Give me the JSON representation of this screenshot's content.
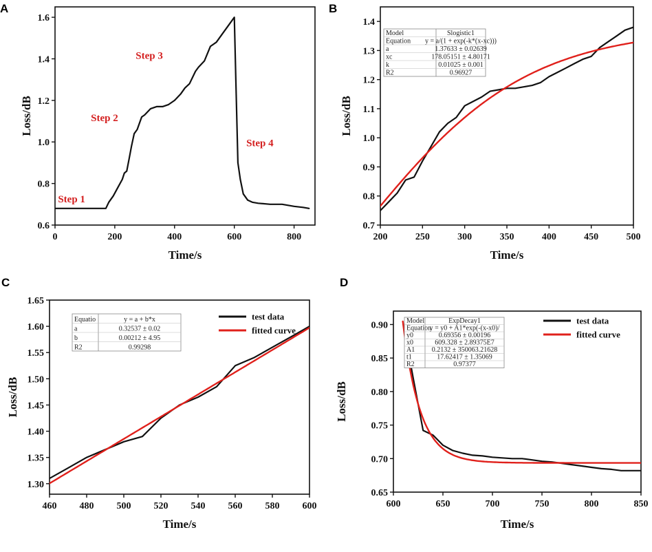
{
  "colors": {
    "data": "#111111",
    "fit": "#e0201b",
    "step_label": "#d42020",
    "axis": "#111111"
  },
  "chart_data": [
    {
      "id": "A",
      "type": "line",
      "panel_label": "A",
      "xlabel": "Time/s",
      "ylabel": "Loss/dB",
      "xlim": [
        0,
        870
      ],
      "ylim": [
        0.6,
        1.65
      ],
      "xticks": [
        0,
        200,
        400,
        600,
        800
      ],
      "yticks": [
        0.6,
        0.8,
        1.0,
        1.2,
        1.4,
        1.6
      ],
      "ytick_decimals": 1,
      "series": [
        {
          "name": "test data",
          "color": "#111111",
          "x": [
            0,
            170,
            180,
            195,
            210,
            225,
            232,
            240,
            248,
            256,
            265,
            275,
            290,
            300,
            320,
            340,
            360,
            380,
            400,
            420,
            435,
            450,
            470,
            480,
            500,
            520,
            540,
            560,
            580,
            600,
            605,
            612,
            620,
            630,
            645,
            660,
            680,
            720,
            760,
            800,
            830,
            850
          ],
          "y": [
            0.68,
            0.68,
            0.71,
            0.74,
            0.78,
            0.82,
            0.85,
            0.86,
            0.92,
            0.98,
            1.04,
            1.06,
            1.12,
            1.13,
            1.16,
            1.17,
            1.17,
            1.18,
            1.2,
            1.23,
            1.26,
            1.28,
            1.34,
            1.36,
            1.39,
            1.46,
            1.48,
            1.52,
            1.56,
            1.6,
            1.3,
            0.9,
            0.82,
            0.75,
            0.72,
            0.71,
            0.705,
            0.7,
            0.7,
            0.69,
            0.685,
            0.68
          ]
        }
      ],
      "annotations": [
        {
          "text": "Step 1",
          "x": 10,
          "y": 0.71
        },
        {
          "text": "Step 2",
          "x": 120,
          "y": 1.1
        },
        {
          "text": "Step 3",
          "x": 270,
          "y": 1.4
        },
        {
          "text": "Step 4",
          "x": 640,
          "y": 0.98
        }
      ]
    },
    {
      "id": "B",
      "type": "line",
      "panel_label": "B",
      "xlabel": "Time/s",
      "ylabel": "Loss/dB",
      "xlim": [
        200,
        500
      ],
      "ylim": [
        0.7,
        1.45
      ],
      "xticks": [
        200,
        250,
        300,
        350,
        400,
        450,
        500
      ],
      "yticks": [
        0.7,
        0.8,
        0.9,
        1.0,
        1.1,
        1.2,
        1.3,
        1.4
      ],
      "ytick_decimals": 1,
      "series": [
        {
          "name": "test data",
          "color": "#111111",
          "x": [
            200,
            210,
            220,
            230,
            240,
            250,
            260,
            270,
            280,
            290,
            300,
            310,
            320,
            330,
            340,
            350,
            360,
            370,
            380,
            390,
            400,
            410,
            420,
            430,
            440,
            450,
            460,
            470,
            480,
            490,
            500
          ],
          "y": [
            0.75,
            0.78,
            0.81,
            0.855,
            0.865,
            0.92,
            0.97,
            1.02,
            1.05,
            1.07,
            1.11,
            1.125,
            1.14,
            1.16,
            1.165,
            1.17,
            1.17,
            1.175,
            1.18,
            1.19,
            1.21,
            1.225,
            1.24,
            1.255,
            1.27,
            1.28,
            1.31,
            1.33,
            1.35,
            1.37,
            1.38
          ]
        },
        {
          "name": "fitted curve",
          "color": "#e0201b",
          "model": "logistic",
          "params": {
            "a": 1.37633,
            "xc": 178.05151,
            "k": 0.01025
          },
          "x_range": [
            200,
            500
          ]
        }
      ],
      "fit_table": [
        [
          "Model",
          "Slogistic1"
        ],
        [
          "Equation",
          "y = a/(1 + exp(-k*(x-xc)))"
        ],
        [
          "a",
          "1.37633 ± 0.02639"
        ],
        [
          "xc",
          "178.05151 ± 4.80171"
        ],
        [
          "k",
          "0.01025 ± 0.001"
        ],
        [
          "R2",
          "0.96927"
        ]
      ]
    },
    {
      "id": "C",
      "type": "line",
      "panel_label": "C",
      "xlabel": "Time/s",
      "ylabel": "Loss/dB",
      "xlim": [
        460,
        600
      ],
      "ylim": [
        1.28,
        1.65
      ],
      "xticks": [
        460,
        480,
        500,
        520,
        540,
        560,
        580,
        600
      ],
      "yticks": [
        1.3,
        1.35,
        1.4,
        1.45,
        1.5,
        1.55,
        1.6,
        1.65
      ],
      "ytick_decimals": 2,
      "series": [
        {
          "name": "test data",
          "color": "#111111",
          "x": [
            460,
            470,
            480,
            490,
            500,
            510,
            520,
            530,
            540,
            550,
            560,
            570,
            580,
            590,
            600
          ],
          "y": [
            1.31,
            1.33,
            1.35,
            1.365,
            1.38,
            1.39,
            1.425,
            1.45,
            1.465,
            1.485,
            1.525,
            1.54,
            1.56,
            1.58,
            1.6
          ]
        },
        {
          "name": "fitted curve",
          "color": "#e0201b",
          "model": "linear",
          "params": {
            "a": 0.32537,
            "b": 0.00212
          },
          "x_range": [
            460,
            600
          ]
        }
      ],
      "legend": [
        "test data",
        "fitted curve"
      ],
      "fit_table": [
        [
          "Equatio",
          "y = a + b*x"
        ],
        [
          "a",
          "0.32537 ± 0.02"
        ],
        [
          "b",
          "0.00212 ± 4.95"
        ],
        [
          "R2",
          "0.99298"
        ]
      ]
    },
    {
      "id": "D",
      "type": "line",
      "panel_label": "D",
      "xlabel": "Time/s",
      "ylabel": "Loss/dB",
      "xlim": [
        600,
        850
      ],
      "ylim": [
        0.65,
        0.92
      ],
      "xticks": [
        600,
        650,
        700,
        750,
        800,
        850
      ],
      "yticks": [
        0.65,
        0.7,
        0.75,
        0.8,
        0.85,
        0.9
      ],
      "ytick_decimals": 2,
      "series": [
        {
          "name": "test data",
          "color": "#111111",
          "x": [
            610,
            620,
            630,
            640,
            650,
            660,
            670,
            680,
            690,
            700,
            710,
            720,
            730,
            740,
            750,
            760,
            770,
            780,
            790,
            800,
            810,
            820,
            830,
            840,
            850
          ],
          "y": [
            0.9,
            0.82,
            0.742,
            0.735,
            0.72,
            0.712,
            0.708,
            0.705,
            0.704,
            0.702,
            0.701,
            0.7,
            0.7,
            0.698,
            0.696,
            0.695,
            0.693,
            0.691,
            0.689,
            0.687,
            0.685,
            0.684,
            0.682,
            0.682,
            0.682
          ]
        },
        {
          "name": "fitted curve",
          "color": "#e0201b",
          "model": "expdecay",
          "params": {
            "y0": 0.69356,
            "A1": 0.2132,
            "x0": 609.328,
            "t1": 17.62417
          },
          "x_range": [
            609.5,
            850
          ]
        }
      ],
      "legend": [
        "test data",
        "fitted curve"
      ],
      "fit_table": [
        [
          "Model",
          "ExpDecay1"
        ],
        [
          "Equation",
          "y = y0 + A1*exp(-(x-x0)/"
        ],
        [
          "y0",
          "0.69356 ± 0.00196"
        ],
        [
          "x0",
          "609.328 ± 2.89375E7"
        ],
        [
          "A1",
          "0.2132 ± 350063.21628"
        ],
        [
          "t1",
          "17.62417 ± 1.35069"
        ],
        [
          "R2",
          "0.97377"
        ]
      ]
    }
  ]
}
